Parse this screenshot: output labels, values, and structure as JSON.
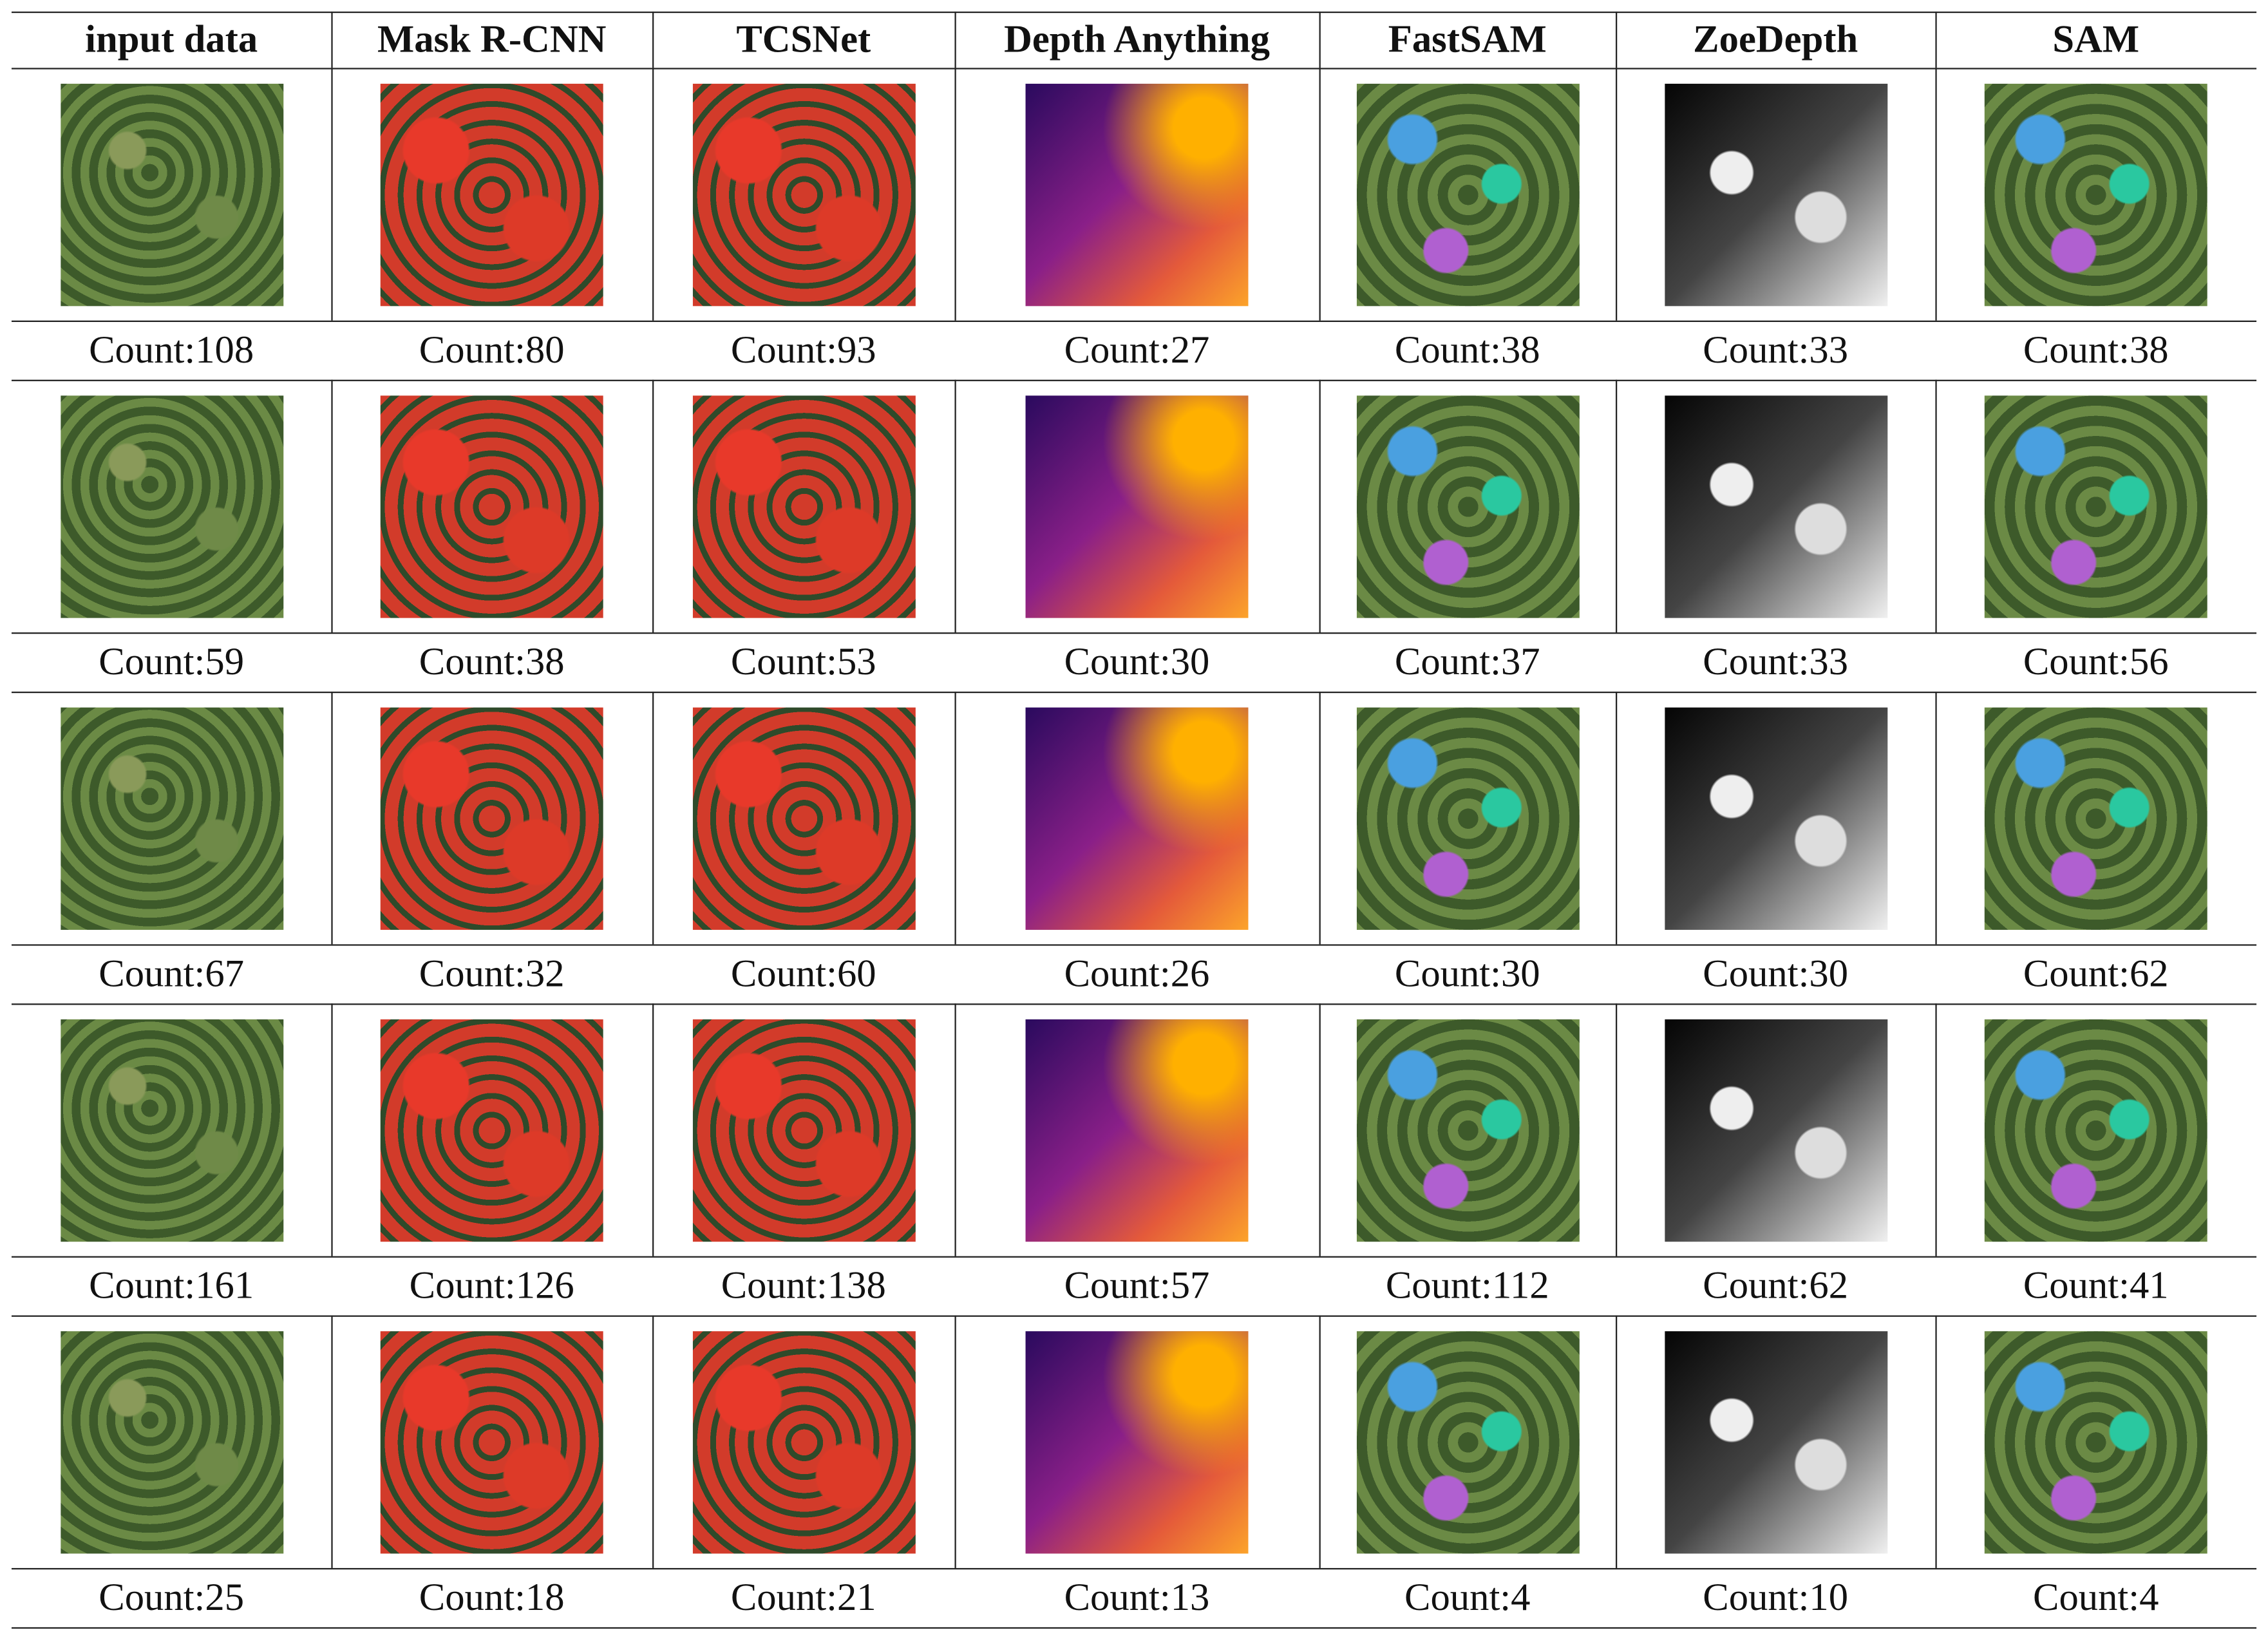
{
  "table": {
    "header": [
      "input data",
      "Mask R-CNN",
      "TCSNet",
      "Depth Anything",
      "FastSAM",
      "ZoeDepth",
      "SAM"
    ],
    "rows": [
      [
        "Count:108",
        "Count:80",
        "Count:93",
        "Count:27",
        "Count:38",
        "Count:33",
        "Count:38"
      ],
      [
        "Count:59",
        "Count:38",
        "Count:53",
        "Count:30",
        "Count:37",
        "Count:33",
        "Count:56"
      ],
      [
        "Count:67",
        "Count:32",
        "Count:60",
        "Count:26",
        "Count:30",
        "Count:30",
        "Count:62"
      ],
      [
        "Count:161",
        "Count:126",
        "Count:138",
        "Count:57",
        "Count:112",
        "Count:62",
        "Count:41"
      ],
      [
        "Count:25",
        "Count:18",
        "Count:21",
        "Count:13",
        "Count:4",
        "Count:10",
        "Count:4"
      ]
    ]
  }
}
